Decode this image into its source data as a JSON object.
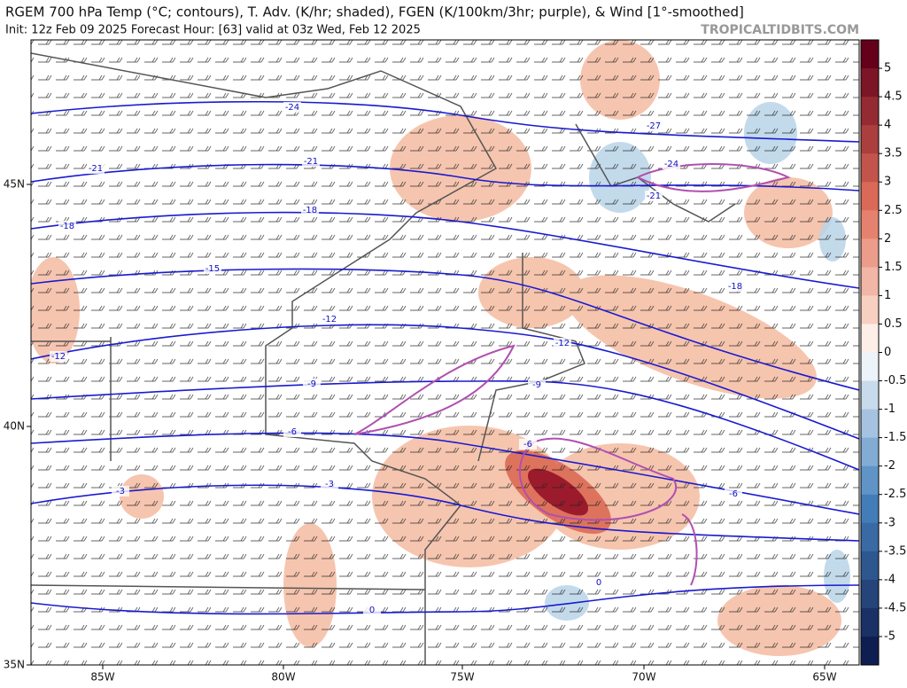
{
  "header": {
    "title": "RGEM 700 hPa Temp (°C; contours), T. Adv. (K/hr; shaded), FGEN (K/100km/3hr; purple), & Wind [1°-smoothed]",
    "subtitle": "Init: 12z Feb 09 2025   Forecast Hour: [63]   valid at 03z Wed, Feb 12 2025",
    "watermark": "TROPICALTIDBITS.COM"
  },
  "axes": {
    "lat_labels": [
      "45N",
      "40N",
      "35N"
    ],
    "lon_labels": [
      "85W",
      "80W",
      "75W",
      "70W",
      "65W"
    ]
  },
  "colorbar": {
    "ticks": [
      5,
      4.5,
      4,
      3.5,
      3,
      2.5,
      2,
      1.5,
      1,
      0.5,
      0,
      -0.5,
      -1,
      -1.5,
      -2,
      -2.5,
      -3,
      -3.5,
      -4,
      -4.5,
      -5
    ]
  },
  "contour_labels": [
    "-24",
    "-27",
    "-21",
    "-21",
    "-24",
    "-21",
    "-18",
    "-18",
    "-18",
    "-15",
    "-12",
    "-12",
    "-12",
    "-9",
    "-9",
    "-6",
    "-6",
    "-6",
    "-3",
    "-3",
    "0",
    "0"
  ]
}
